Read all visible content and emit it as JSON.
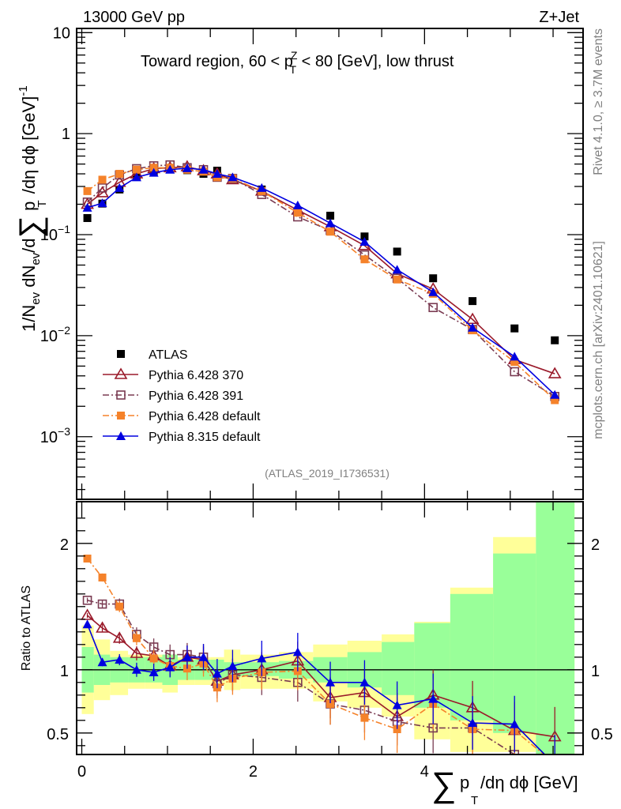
{
  "chart_data": [
    {
      "panel": "main",
      "type": "scatter",
      "title": "Toward region, 60 < p_T^Z < 80 [GeV], low thrust",
      "header_left": "13000 GeV pp",
      "header_right": "Z+Jet",
      "side_label_top": "Rivet 4.1.0, ≥ 3.7M events",
      "side_label_bottom": "mcplots.cern.ch [arXiv:2401.10621]",
      "analysis_label": "(ATLAS_2019_I1736531)",
      "ylabel": "1/N_ev dN_ev/d∑ p_T /dη dφ [GeV]^-1",
      "yscale": "log",
      "ylim": [
        0.00024,
        11
      ],
      "xlim": [
        -0.06,
        5.85
      ],
      "yticks": [
        {
          "value": 10,
          "label": "10"
        },
        {
          "value": 1,
          "label": "1"
        },
        {
          "value": 0.1,
          "label": "10^-1"
        },
        {
          "value": 0.01,
          "label": "10^-2"
        },
        {
          "value": 0.001,
          "label": "10^-3"
        }
      ],
      "legend_position": "bottom-left",
      "x": [
        0.065,
        0.24,
        0.44,
        0.64,
        0.84,
        1.03,
        1.23,
        1.42,
        1.58,
        1.76,
        2.1,
        2.52,
        2.9,
        3.3,
        3.68,
        4.1,
        4.56,
        5.05,
        5.52
      ],
      "series": [
        {
          "name": "ATLAS",
          "color": "#000000",
          "marker": "filled-square",
          "line": "none",
          "values": [
            0.146,
            0.203,
            0.28,
            0.375,
            0.42,
            0.45,
            0.435,
            0.4,
            0.43,
            0.36,
            0.28,
            0.17,
            0.154,
            0.096,
            0.068,
            0.037,
            0.022,
            0.0118,
            0.009
          ]
        },
        {
          "name": "Pythia 6.428 370",
          "color": "#9a1a2a",
          "marker": "open-triangle",
          "line": "solid",
          "values": [
            0.2,
            0.26,
            0.33,
            0.4,
            0.45,
            0.46,
            0.47,
            0.43,
            0.4,
            0.35,
            0.27,
            0.175,
            0.12,
            0.078,
            0.041,
            0.029,
            0.0145,
            0.0058,
            0.0042
          ]
        },
        {
          "name": "Pythia 6.428 391",
          "color": "#7a3b52",
          "marker": "open-square",
          "line": "dash-dot",
          "values": [
            0.21,
            0.29,
            0.39,
            0.45,
            0.48,
            0.49,
            0.46,
            0.44,
            0.37,
            0.36,
            0.25,
            0.15,
            0.11,
            0.063,
            0.037,
            0.019,
            0.0115,
            0.0044,
            0.0025
          ]
        },
        {
          "name": "Pythia 6.428 default",
          "color": "#f5822a",
          "marker": "filled-square",
          "line": "dash-dot",
          "values": [
            0.27,
            0.35,
            0.4,
            0.44,
            0.46,
            0.46,
            0.44,
            0.42,
            0.37,
            0.36,
            0.27,
            0.165,
            0.107,
            0.057,
            0.036,
            0.026,
            0.0113,
            0.0055,
            0.0023
          ]
        },
        {
          "name": "Pythia 8.315 default",
          "color": "#0000e0",
          "marker": "filled-triangle",
          "line": "solid",
          "values": [
            0.185,
            0.205,
            0.29,
            0.37,
            0.41,
            0.44,
            0.455,
            0.44,
            0.4,
            0.37,
            0.29,
            0.195,
            0.13,
            0.085,
            0.045,
            0.027,
            0.012,
            0.0062,
            0.0026
          ]
        }
      ]
    },
    {
      "panel": "ratio",
      "type": "scatter",
      "ylabel": "Ratio to ATLAS",
      "xlabel": "∑ p_T /dη dφ [GeV]",
      "ylim": [
        0.33,
        2.33
      ],
      "xlim": [
        -0.06,
        5.85
      ],
      "xticks": [
        {
          "value": 0,
          "label": "0"
        },
        {
          "value": 2,
          "label": "2"
        },
        {
          "value": 4,
          "label": "4"
        }
      ],
      "yticks": [
        {
          "value": 0.5,
          "label": "0.5"
        },
        {
          "value": 1,
          "label": "1"
        },
        {
          "value": 2,
          "label": "2"
        }
      ],
      "reference_line": 1,
      "bin_edges": [
        0,
        0.14,
        0.33,
        0.54,
        0.74,
        0.94,
        1.12,
        1.32,
        1.5,
        1.66,
        1.85,
        2.3,
        2.7,
        3.1,
        3.5,
        3.88,
        4.3,
        4.8,
        5.3,
        5.75
      ],
      "bands": [
        {
          "name": "stat uncertainty",
          "color": "#99ff99",
          "lo": [
            0.82,
            0.88,
            0.9,
            0.9,
            0.9,
            0.88,
            0.92,
            0.92,
            0.92,
            0.94,
            0.95,
            0.93,
            0.9,
            0.86,
            0.8,
            0.7,
            0.6,
            0.5,
            0.3
          ],
          "hi": [
            1.18,
            1.12,
            1.1,
            1.1,
            1.1,
            1.12,
            1.08,
            1.08,
            1.08,
            1.06,
            1.06,
            1.07,
            1.1,
            1.14,
            1.22,
            1.37,
            1.6,
            1.92,
            2.33
          ]
        },
        {
          "name": "total uncertainty",
          "color": "#ffff99",
          "lo": [
            0.65,
            0.76,
            0.8,
            0.85,
            0.85,
            0.82,
            0.88,
            0.88,
            0.88,
            0.84,
            0.85,
            0.85,
            0.75,
            0.7,
            0.63,
            0.45,
            0.35,
            0.35,
            0.3
          ],
          "hi": [
            1.35,
            1.24,
            1.15,
            1.12,
            1.12,
            1.12,
            1.1,
            1.1,
            1.1,
            1.16,
            1.12,
            1.14,
            1.2,
            1.23,
            1.28,
            1.38,
            1.65,
            2.05,
            2.33
          ]
        }
      ],
      "series": [
        {
          "name": "Pythia 6.428 370",
          "color": "#9a1a2a",
          "marker": "open-triangle",
          "line": "solid",
          "values": [
            1.43,
            1.33,
            1.25,
            1.13,
            1.11,
            1.03,
            1.1,
            1.08,
            0.91,
            0.96,
            1.0,
            1.07,
            0.78,
            0.82,
            0.63,
            0.8,
            0.7,
            0.52,
            0.47
          ]
        },
        {
          "name": "Pythia 6.428 391",
          "color": "#7a3b52",
          "marker": "open-square",
          "line": "dash-dot",
          "values": [
            1.55,
            1.52,
            1.52,
            1.28,
            1.18,
            1.12,
            1.12,
            1.1,
            0.89,
            0.96,
            0.94,
            0.9,
            0.73,
            0.68,
            0.59,
            0.54,
            0.54,
            0.33,
            0.28
          ]
        },
        {
          "name": "Pythia 6.428 default",
          "color": "#f5822a",
          "marker": "filled-square",
          "line": "dash-dot",
          "values": [
            1.88,
            1.73,
            1.5,
            1.25,
            1.09,
            1.03,
            1.01,
            1.05,
            0.86,
            0.93,
            0.98,
            0.99,
            0.73,
            0.62,
            0.53,
            0.73,
            0.53,
            0.52,
            0.26
          ]
        },
        {
          "name": "Pythia 8.315 default",
          "color": "#0000e0",
          "marker": "filled-triangle",
          "line": "solid",
          "values": [
            1.36,
            1.06,
            1.08,
            1.0,
            0.98,
            1.02,
            1.1,
            1.1,
            0.97,
            1.03,
            1.09,
            1.14,
            0.9,
            0.9,
            0.72,
            0.77,
            0.58,
            0.57,
            0.25
          ]
        }
      ]
    }
  ]
}
